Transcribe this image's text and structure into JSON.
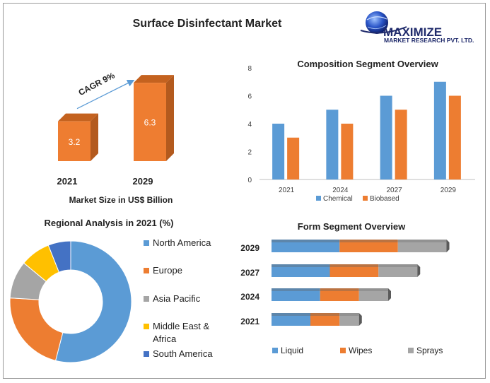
{
  "page": {
    "title": "Surface Disinfectant Market"
  },
  "logo": {
    "name": "MAXIMIZE",
    "sub": "MARKET RESEARCH PVT. LTD."
  },
  "colors": {
    "blue": "#5b9bd5",
    "orange": "#ed7d31",
    "gray": "#a5a5a5",
    "yellow": "#ffc000",
    "darkblue": "#4472c4",
    "bar3d_front": "#ee7d31",
    "bar3d_side": "#b35a1e",
    "bar3d_top": "#c4621f",
    "logo_navy": "#1f2a6b"
  },
  "chart_data": [
    {
      "type": "bar",
      "title": "",
      "categories": [
        "2021",
        "2029"
      ],
      "values": [
        3.2,
        6.3
      ],
      "value_labels": [
        "3.2",
        "6.3"
      ],
      "xlabel": "Market Size in US$ Billion",
      "annotation": "CAGR 9%",
      "style": "3d"
    },
    {
      "type": "bar",
      "title": "Composition Segment Overview",
      "categories": [
        "2021",
        "2024",
        "2027",
        "2029"
      ],
      "series": [
        {
          "name": "Chemical",
          "values": [
            4,
            5,
            6,
            7
          ]
        },
        {
          "name": "Biobased",
          "values": [
            3,
            4,
            5,
            6
          ]
        }
      ],
      "ylim": [
        0,
        8
      ],
      "yticks": [
        "0",
        "2",
        "4",
        "6",
        "8"
      ],
      "legend": "bottom"
    },
    {
      "type": "pie",
      "title": "Regional Analysis in 2021 (%)",
      "labels": [
        "North America",
        "Europe",
        "Asia Pacific",
        "Middle East & Africa",
        "South America"
      ],
      "values": [
        54,
        22,
        10,
        8,
        6
      ],
      "legend": "right"
    },
    {
      "type": "bar",
      "orientation": "horizontal",
      "stacked": true,
      "title": "Form Segment Overview",
      "categories": [
        "2029",
        "2027",
        "2024",
        "2021"
      ],
      "series": [
        {
          "name": "Liquid",
          "values": [
            3.5,
            3.0,
            2.5,
            2.0
          ]
        },
        {
          "name": "Wipes",
          "values": [
            3.0,
            2.5,
            2.0,
            1.5
          ]
        },
        {
          "name": "Sprays",
          "values": [
            2.5,
            2.0,
            1.5,
            1.0
          ]
        }
      ],
      "legend": "bottom"
    }
  ]
}
